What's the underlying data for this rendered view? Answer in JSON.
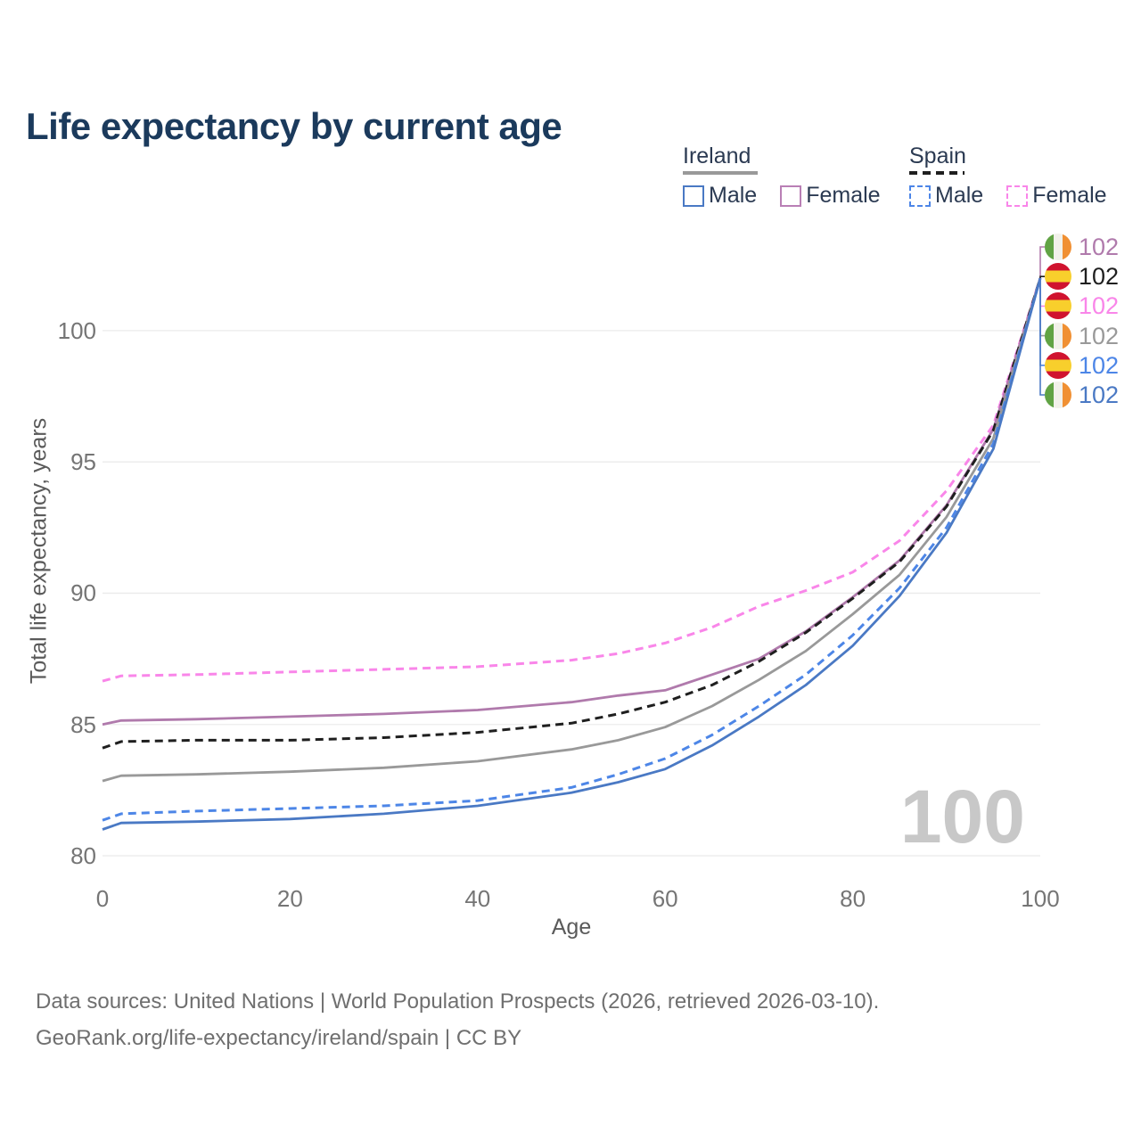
{
  "title": "Life expectancy by current age",
  "watermark": "100",
  "axes": {
    "x_title": "Age",
    "y_title": "Total life expectancy, years"
  },
  "legend": {
    "groups": [
      {
        "label": "Ireland",
        "line_style": "solid",
        "underline_color": "#999999",
        "items": [
          {
            "label": "Male",
            "color": "#4a79c4",
            "dashed": false
          },
          {
            "label": "Female",
            "color": "#b97fb5",
            "dashed": false
          }
        ]
      },
      {
        "label": "Spain",
        "line_style": "dashed",
        "underline_color": "#1f1f1f",
        "items": [
          {
            "label": "Male",
            "color": "#4d86e7",
            "dashed": true
          },
          {
            "label": "Female",
            "color": "#f986e9",
            "dashed": true
          }
        ]
      }
    ]
  },
  "end_labels": [
    {
      "flag": "ireland",
      "value": "102",
      "color": "#b07aac"
    },
    {
      "flag": "spain",
      "value": "102",
      "color": "#1f1f1f"
    },
    {
      "flag": "spain",
      "value": "102",
      "color": "#f986e9"
    },
    {
      "flag": "ireland",
      "value": "102",
      "color": "#999999"
    },
    {
      "flag": "spain",
      "value": "102",
      "color": "#4d86e7"
    },
    {
      "flag": "ireland",
      "value": "102",
      "color": "#4a79c4"
    }
  ],
  "footer": {
    "line1": "Data sources: United Nations | World Population Prospects (2026, retrieved 2026-03-10).",
    "line2": "GeoRank.org/life-expectancy/ireland/spain | CC BY"
  },
  "chart_data": {
    "type": "line",
    "title": "Life expectancy by current age",
    "xlabel": "Age",
    "ylabel": "Total life expectancy, years",
    "xlim": [
      0,
      100
    ],
    "ylim": [
      80,
      102
    ],
    "x_ticks": [
      0,
      20,
      40,
      60,
      80,
      100
    ],
    "y_ticks": [
      80,
      85,
      90,
      95,
      100
    ],
    "grid": "horizontal",
    "legend_position": "top-right",
    "x": [
      0,
      2,
      10,
      20,
      30,
      40,
      50,
      55,
      60,
      65,
      70,
      75,
      80,
      85,
      90,
      95,
      100
    ],
    "series": [
      {
        "name": "Spain Female",
        "country": "Spain",
        "sex": "Female",
        "color": "#f986e9",
        "dash": true,
        "values": [
          86.65,
          86.85,
          86.9,
          87.0,
          87.1,
          87.2,
          87.45,
          87.7,
          88.1,
          88.7,
          89.5,
          90.1,
          90.8,
          92.0,
          93.9,
          96.4,
          102
        ]
      },
      {
        "name": "Ireland Female",
        "country": "Ireland",
        "sex": "Female",
        "color": "#b07aac",
        "dash": false,
        "values": [
          85.0,
          85.15,
          85.2,
          85.3,
          85.4,
          85.55,
          85.85,
          86.1,
          86.3,
          86.9,
          87.5,
          88.55,
          89.85,
          91.25,
          93.35,
          96.25,
          102
        ]
      },
      {
        "name": "Spain Both sexes",
        "country": "Spain",
        "sex": "Both",
        "color": "#1f1f1f",
        "dash": true,
        "values": [
          84.1,
          84.35,
          84.4,
          84.4,
          84.5,
          84.7,
          85.05,
          85.4,
          85.85,
          86.5,
          87.4,
          88.5,
          89.8,
          91.2,
          93.3,
          96.2,
          102
        ]
      },
      {
        "name": "Ireland Both sexes",
        "country": "Ireland",
        "sex": "Both",
        "color": "#999999",
        "dash": false,
        "values": [
          82.85,
          83.05,
          83.1,
          83.2,
          83.35,
          83.6,
          84.05,
          84.4,
          84.9,
          85.7,
          86.7,
          87.8,
          89.2,
          90.7,
          92.9,
          95.9,
          102
        ]
      },
      {
        "name": "Spain Male",
        "country": "Spain",
        "sex": "Male",
        "color": "#4d86e7",
        "dash": true,
        "values": [
          81.35,
          81.6,
          81.7,
          81.8,
          81.9,
          82.1,
          82.6,
          83.1,
          83.7,
          84.6,
          85.7,
          86.9,
          88.4,
          90.2,
          92.5,
          95.7,
          102
        ]
      },
      {
        "name": "Ireland Male",
        "country": "Ireland",
        "sex": "Male",
        "color": "#4a79c4",
        "dash": false,
        "values": [
          81.0,
          81.25,
          81.3,
          81.4,
          81.6,
          81.9,
          82.4,
          82.8,
          83.3,
          84.2,
          85.3,
          86.5,
          88.0,
          89.9,
          92.3,
          95.5,
          102
        ]
      }
    ],
    "end_value_labels": [
      "102",
      "102",
      "102",
      "102",
      "102",
      "102"
    ],
    "hovered_age": "100"
  }
}
